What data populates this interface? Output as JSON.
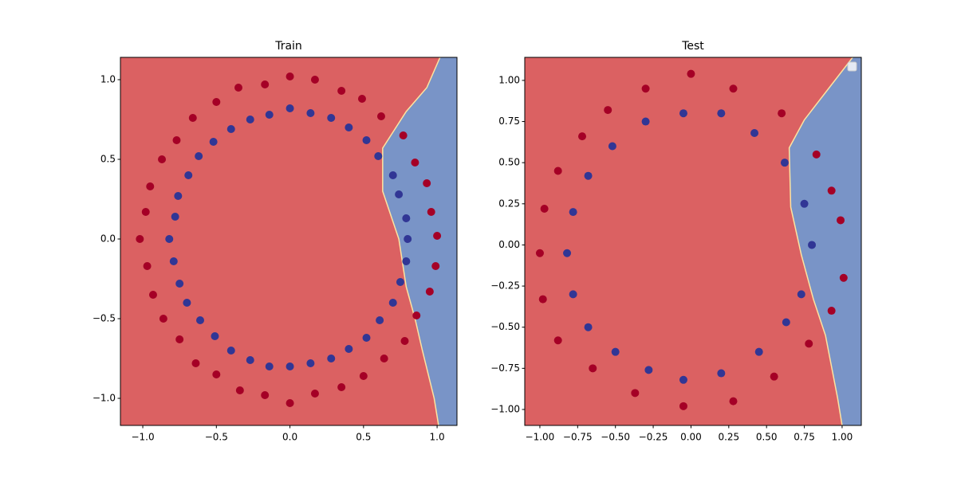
{
  "chart_data": [
    {
      "type": "scatter",
      "title": "Train",
      "xlim": [
        -1.152,
        1.135
      ],
      "ylim": [
        -1.17,
        1.14
      ],
      "xticks": [
        {
          "value": -1.0,
          "label": "−1.0"
        },
        {
          "value": -0.5,
          "label": "−0.5"
        },
        {
          "value": 0.0,
          "label": "0.0"
        },
        0.5,
        {
          "value": 1.0,
          "label": "1.0"
        }
      ],
      "yticks": [
        {
          "value": -1.0,
          "label": "−1.0"
        },
        {
          "value": -0.5,
          "label": "−0.5"
        },
        {
          "value": 0.0,
          "label": "0.0"
        },
        0.5,
        {
          "value": 1.0,
          "label": "1.0"
        }
      ],
      "background_color": "#db6162",
      "boundary": {
        "color": "#7994c7",
        "line_color": "#fde3a0",
        "x": [
          1.02,
          0.93,
          0.79,
          0.63,
          0.63,
          0.74,
          0.79,
          0.85,
          0.9,
          0.98,
          1.01
        ],
        "y": [
          1.14,
          0.95,
          0.8,
          0.57,
          0.3,
          0.0,
          -0.3,
          -0.5,
          -0.7,
          -1.0,
          -1.17
        ]
      },
      "series": [
        {
          "color": "#a50026",
          "x": [
            1.0,
            0.96,
            0.93,
            0.85,
            0.77,
            0.62,
            0.49,
            0.35,
            0.17,
            0.0,
            -0.17,
            -0.35,
            -0.5,
            -0.66,
            -0.77,
            -0.87,
            -0.95,
            -0.98,
            -1.02,
            -0.97,
            -0.93,
            -0.86,
            -0.75,
            -0.64,
            -0.5,
            -0.34,
            -0.17,
            0.0,
            0.17,
            0.35,
            0.5,
            0.64,
            0.78,
            0.86,
            0.95,
            0.99
          ],
          "y": [
            0.02,
            0.17,
            0.35,
            0.48,
            0.65,
            0.77,
            0.88,
            0.93,
            1.0,
            1.02,
            0.97,
            0.95,
            0.86,
            0.76,
            0.62,
            0.5,
            0.33,
            0.17,
            0.0,
            -0.17,
            -0.35,
            -0.5,
            -0.63,
            -0.78,
            -0.85,
            -0.95,
            -0.98,
            -1.03,
            -0.97,
            -0.93,
            -0.86,
            -0.75,
            -0.64,
            -0.48,
            -0.33,
            -0.17
          ]
        },
        {
          "color": "#313695",
          "x": [
            0.8,
            0.79,
            0.74,
            0.7,
            0.6,
            0.52,
            0.4,
            0.28,
            0.14,
            0.0,
            -0.14,
            -0.27,
            -0.4,
            -0.52,
            -0.62,
            -0.69,
            -0.76,
            -0.78,
            -0.82,
            -0.79,
            -0.75,
            -0.7,
            -0.61,
            -0.51,
            -0.4,
            -0.27,
            -0.14,
            0.0,
            0.14,
            0.28,
            0.4,
            0.52,
            0.61,
            0.7,
            0.75,
            0.79
          ],
          "y": [
            0.0,
            0.13,
            0.28,
            0.4,
            0.52,
            0.62,
            0.7,
            0.76,
            0.79,
            0.82,
            0.78,
            0.75,
            0.69,
            0.61,
            0.52,
            0.4,
            0.27,
            0.14,
            0.0,
            -0.14,
            -0.28,
            -0.4,
            -0.51,
            -0.61,
            -0.7,
            -0.76,
            -0.8,
            -0.8,
            -0.78,
            -0.75,
            -0.69,
            -0.62,
            -0.51,
            -0.4,
            -0.27,
            -0.14
          ]
        }
      ]
    },
    {
      "type": "scatter",
      "title": "Test",
      "xlim": [
        -1.1,
        1.127
      ],
      "ylim": [
        -1.097,
        1.14
      ],
      "xticks": [
        {
          "value": -1.0,
          "label": "−1.00"
        },
        {
          "value": -0.75,
          "label": "−0.75"
        },
        {
          "value": -0.5,
          "label": "−0.50"
        },
        {
          "value": -0.25,
          "label": "−0.25"
        },
        {
          "value": 0.0,
          "label": "0.00"
        },
        0.25,
        {
          "value": 0.5,
          "label": "0.50"
        },
        0.75,
        {
          "value": 1.0,
          "label": "1.00"
        }
      ],
      "yticks": [
        {
          "value": -1.0,
          "label": "−1.00"
        },
        {
          "value": -0.75,
          "label": "−0.75"
        },
        {
          "value": -0.5,
          "label": "−0.50"
        },
        {
          "value": -0.25,
          "label": "−0.25"
        },
        {
          "value": 0.0,
          "label": "0.00"
        },
        0.25,
        {
          "value": 0.5,
          "label": "0.50"
        },
        0.75,
        {
          "value": 1.0,
          "label": "1.00"
        }
      ],
      "background_color": "#db6162",
      "legend": "upper right",
      "boundary": {
        "color": "#7994c7",
        "line_color": "#fde3a0",
        "x": [
          1.07,
          0.91,
          0.75,
          0.65,
          0.66,
          0.73,
          0.81,
          0.89,
          0.97,
          1.0
        ],
        "y": [
          1.14,
          0.95,
          0.76,
          0.59,
          0.23,
          -0.06,
          -0.33,
          -0.55,
          -0.93,
          -1.097
        ]
      },
      "series": [
        {
          "color": "#a50026",
          "x": [
            1.01,
            0.99,
            0.93,
            0.83,
            0.6,
            0.28,
            0.0,
            -0.3,
            -0.55,
            -0.72,
            -0.88,
            -0.97,
            -1.0,
            -0.98,
            -0.88,
            -0.65,
            -0.37,
            -0.05,
            0.28,
            0.55,
            0.78,
            0.93
          ],
          "y": [
            -0.2,
            0.15,
            0.33,
            0.55,
            0.8,
            0.95,
            1.04,
            0.95,
            0.82,
            0.66,
            0.45,
            0.22,
            -0.05,
            -0.33,
            -0.58,
            -0.75,
            -0.9,
            -0.98,
            -0.95,
            -0.8,
            -0.6,
            -0.4
          ]
        },
        {
          "color": "#313695",
          "x": [
            0.8,
            0.75,
            0.62,
            0.42,
            0.2,
            -0.05,
            -0.3,
            -0.52,
            -0.68,
            -0.78,
            -0.82,
            -0.78,
            -0.68,
            -0.5,
            -0.28,
            -0.05,
            0.2,
            0.45,
            0.63,
            0.73
          ],
          "y": [
            0.0,
            0.25,
            0.5,
            0.68,
            0.8,
            0.8,
            0.75,
            0.6,
            0.42,
            0.2,
            -0.05,
            -0.3,
            -0.5,
            -0.65,
            -0.76,
            -0.82,
            -0.78,
            -0.65,
            -0.47,
            -0.3
          ]
        }
      ]
    }
  ]
}
